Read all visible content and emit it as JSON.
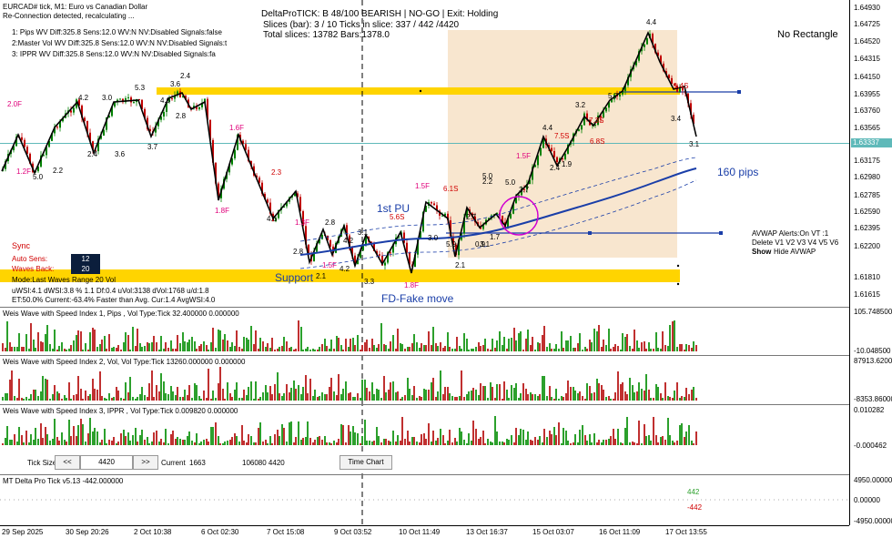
{
  "header": {
    "symbol_line": "EURCAD# tick, M1:  Euro vs Canadian Dollar",
    "reconnect": "Re-Connection detected, recalculating ...",
    "status_line1": "DeltaProTICK: B 48/100 BEARISH | NO-GO | Exit: Holding",
    "status_line2": "Slices (bar): 3 / 10 Ticks in slice: 337 / 442 /4420",
    "status_line3": "Total slices: 13782 Bars:1378.0",
    "no_rectangle": "No Rectangle"
  },
  "wave_settings": [
    "1: Pips  WV Diff:325.8 Sens:12.0 WV:N NV:Disabled Signals:false",
    "2:Master Vol WV Diff:325.8 Sens:12.0 WV:N NV:Disabled Signals:t",
    "3: IPPR    WV Diff:325.8 Sens:12.0 WV:N NV:Disabled Signals:fa"
  ],
  "annotations": {
    "support": "Support",
    "first_pu": "1st PU",
    "fd_fake": "FD-Fake move",
    "pips": "160 pips",
    "avwap1": "AVWAP Alerts:On  VT :1",
    "avwap2": "Delete V1 V2 V3 V4 V5 V6",
    "avwap_show": "Show",
    "avwap_hide": "Hide AVWAP"
  },
  "sync_panel": {
    "sync": "Sync",
    "auto_sens_label": "Auto Sens:",
    "auto_sens_value": "12",
    "waves_back_label": "Waves Back:",
    "waves_back_value": "20",
    "mode": "Mode:Last Waves Range 20 Vol",
    "stats1": "uWSI:4.1 dWSI:3.8 % 1.1 Df:0.4 uVol:3138 dVol:1768 u/d:1.8",
    "stats2": "ET:50.0% Current:-63.4% Faster than Avg. Cur:1.4 AvgWSI:4.0"
  },
  "price_axis": {
    "ticks": [
      "1.64930",
      "1.64725",
      "1.64520",
      "1.64315",
      "1.64150",
      "1.63955",
      "1.63760",
      "1.63565",
      "1.63337",
      "1.63175",
      "1.62980",
      "1.62785",
      "1.62590",
      "1.62395",
      "1.62200",
      "1.61810",
      "1.61615"
    ],
    "current": "1.63337"
  },
  "wave_labels": [
    {
      "t": "2.0F",
      "c": "#e0007a"
    },
    {
      "t": "5.3"
    },
    {
      "t": "3.6"
    },
    {
      "t": "2.4"
    },
    {
      "t": "4.2"
    },
    {
      "t": "3.0"
    },
    {
      "t": "4.6"
    },
    {
      "t": "2.8"
    },
    {
      "t": "1.2F",
      "c": "#e0007a"
    },
    {
      "t": "2.2"
    },
    {
      "t": "2.4"
    },
    {
      "t": "3.6"
    },
    {
      "t": "3.7"
    },
    {
      "t": "5.0"
    },
    {
      "t": "1.6F",
      "c": "#e0007a"
    },
    {
      "t": "1.8F",
      "c": "#e0007a"
    },
    {
      "t": "2.3",
      "c": "#d00000"
    },
    {
      "t": "4.6"
    },
    {
      "t": "1.3F",
      "c": "#e0007a"
    },
    {
      "t": "2.8"
    },
    {
      "t": "2.8"
    },
    {
      "t": "4.2"
    },
    {
      "t": "3.1"
    },
    {
      "t": "2.1"
    },
    {
      "t": "4.2"
    },
    {
      "t": "1.5F",
      "c": "#e0007a"
    },
    {
      "t": "3.3"
    },
    {
      "t": "1.8F",
      "c": "#e0007a"
    },
    {
      "t": "5.6S",
      "c": "#d00000"
    },
    {
      "t": "1.5F",
      "c": "#e0007a"
    },
    {
      "t": "6.1S",
      "c": "#d00000"
    },
    {
      "t": "3.0"
    },
    {
      "t": "2.2"
    },
    {
      "t": "2.7"
    },
    {
      "t": "2.1"
    },
    {
      "t": "1.7"
    },
    {
      "t": "5.0"
    },
    {
      "t": "1.5F",
      "c": "#e0007a"
    },
    {
      "t": "3.7"
    },
    {
      "t": "4.4"
    },
    {
      "t": "7.5S",
      "c": "#d00000"
    },
    {
      "t": "2.4"
    },
    {
      "t": "1.9"
    },
    {
      "t": "6.8S",
      "c": "#d00000"
    },
    {
      "t": "3.2"
    },
    {
      "t": "5.7"
    },
    {
      "t": "4.4"
    },
    {
      "t": "3.4"
    },
    {
      "t": "3.1"
    },
    {
      "t": "1.4S",
      "c": "#d00000"
    },
    {
      "t": "7.3S",
      "c": "#d00000"
    },
    {
      "t": "5.9"
    },
    {
      "t": "0.9"
    },
    {
      "t": "3.1"
    },
    {
      "t": "5.0"
    }
  ],
  "indicators": [
    {
      "title": "Weis Wave with Speed Index 1, Pips , Vol Type:Tick 32.400000 0.000000",
      "top": "105.748500",
      "bottom": "-10.048500"
    },
    {
      "title": "Weis Wave with Speed Index 2, Vol, Vol Type:Tick 13260.000000 0.000000",
      "top": "87913.6200",
      "bottom": "-8353.86000"
    },
    {
      "title": "Weis Wave with Speed Index 3, IPPR   , Vol Type:Tick 0.009820 0.000000",
      "top": "0.010282",
      "bottom": "-0.000462"
    },
    {
      "title": "MT Delta Pro Tick v5.13 -442.000000",
      "top": "4950.00000",
      "mid": "0.00000",
      "bottom": "-4950.00000"
    }
  ],
  "tick_controls": {
    "label": "Tick Size:",
    "prev": "<<",
    "value": "4420",
    "next": ">>",
    "current_label": "Current",
    "current_value": "1663",
    "info": "106080 4420",
    "time_chart": "Time Chart"
  },
  "delta_values": {
    "up": "442",
    "down": "-442"
  },
  "time_axis": [
    "29 Sep 2025",
    "30 Sep 20:26",
    "2 Oct 10:38",
    "6 Oct 02:30",
    "7 Oct 15:08",
    "9 Oct 03:52",
    "10 Oct 11:49",
    "13 Oct 16:37",
    "15 Oct 03:07",
    "16 Oct 11:09",
    "17 Oct 13:55"
  ],
  "chart_colors": {
    "up": "#008000",
    "down": "#c00000",
    "support": "#ffd400",
    "vwap": "#1a3ea8",
    "box": "#f8e6cf",
    "price_line": "#5fb9b9"
  }
}
